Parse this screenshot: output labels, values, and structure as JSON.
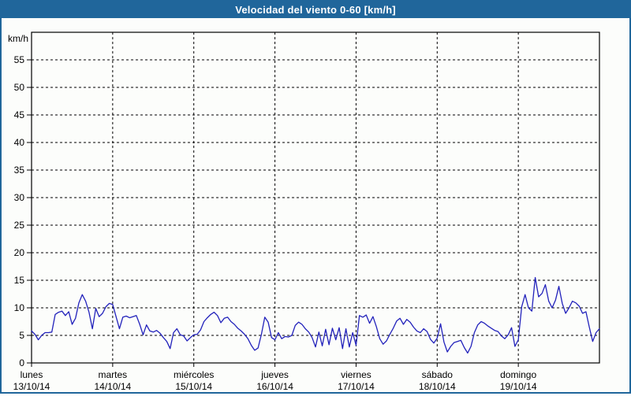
{
  "window": {
    "title": "Velocidad del viento 0-60 [km/h]"
  },
  "colors": {
    "titlebar_bg": "#20669b",
    "panel_border": "#20669b",
    "panel_bg": "#fcfdfb",
    "line_color": "#2222bb",
    "grid_color": "#000000",
    "axis_color": "#000000",
    "label_color": "#000000"
  },
  "chart_data": {
    "type": "line",
    "title": "Velocidad del viento 0-60 [km/h]",
    "ylabel": "km/h",
    "xlabel": "",
    "ylim": [
      0,
      60
    ],
    "ytick_step": 5,
    "yticks": [
      0,
      5,
      10,
      15,
      20,
      25,
      30,
      35,
      40,
      45,
      50,
      55
    ],
    "grid": true,
    "legend": "none",
    "x_axis_days": [
      {
        "name": "lunes",
        "date": "13/10/14"
      },
      {
        "name": "martes",
        "date": "14/10/14"
      },
      {
        "name": "miércoles",
        "date": "15/10/14"
      },
      {
        "name": "jueves",
        "date": "16/10/14"
      },
      {
        "name": "viernes",
        "date": "17/10/14"
      },
      {
        "name": "sábado",
        "date": "18/10/14"
      },
      {
        "name": "domingo",
        "date": "19/10/14"
      }
    ],
    "samples_per_day": 24,
    "series": [
      {
        "name": "Velocidad del viento [km/h]",
        "values": [
          5.8,
          5.2,
          4.2,
          5.0,
          5.5,
          5.5,
          5.6,
          8.8,
          9.2,
          9.4,
          8.6,
          9.3,
          7.0,
          8.1,
          10.9,
          12.4,
          11.2,
          9.2,
          6.2,
          9.9,
          8.4,
          9.0,
          10.2,
          10.8,
          10.6,
          8.4,
          6.2,
          8.3,
          8.5,
          8.2,
          8.4,
          8.6,
          7.0,
          5.1,
          6.9,
          5.8,
          5.6,
          5.9,
          5.4,
          4.6,
          3.9,
          2.6,
          5.5,
          6.2,
          5.1,
          4.9,
          4.0,
          4.6,
          5.1,
          5.2,
          6.0,
          7.5,
          8.2,
          8.8,
          9.2,
          8.6,
          7.3,
          8.1,
          8.3,
          7.5,
          7.0,
          6.3,
          5.8,
          5.2,
          4.4,
          3.2,
          2.3,
          2.7,
          5.2,
          8.3,
          7.4,
          4.6,
          4.2,
          5.5,
          4.4,
          4.8,
          4.7,
          5.0,
          6.8,
          7.4,
          7.0,
          6.2,
          5.6,
          4.6,
          2.9,
          5.6,
          3.1,
          6.1,
          3.3,
          6.3,
          4.2,
          6.4,
          2.6,
          6.2,
          2.9,
          5.5,
          3.2,
          8.6,
          8.3,
          8.7,
          7.2,
          8.4,
          6.6,
          4.4,
          3.4,
          4.0,
          5.2,
          6.3,
          7.6,
          8.1,
          7.0,
          7.9,
          7.4,
          6.5,
          5.8,
          5.5,
          6.2,
          5.7,
          4.3,
          3.6,
          4.5,
          7.1,
          3.8,
          2.0,
          3.0,
          3.7,
          3.9,
          4.1,
          2.8,
          1.8,
          3.0,
          5.5,
          6.9,
          7.5,
          7.2,
          6.7,
          6.3,
          5.9,
          5.7,
          4.9,
          4.4,
          5.1,
          6.4,
          3.0,
          4.2,
          10.2,
          12.4,
          10.0,
          9.4,
          15.5,
          12.0,
          12.6,
          14.2,
          11.2,
          10.0,
          11.4,
          13.9,
          10.8,
          9.0,
          10.0,
          11.2,
          10.9,
          10.3,
          9.0,
          9.3,
          6.5,
          3.9,
          5.5,
          6.2
        ]
      }
    ]
  }
}
